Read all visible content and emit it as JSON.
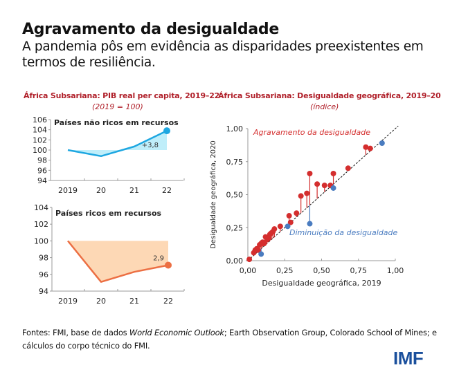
{
  "header": {
    "title": "Agravamento da desigualdade",
    "subtitle": "A pandemia pôs em evidência as disparidades preexistentes em termos de resiliência."
  },
  "left_panel": {
    "title": "África Subsariana: PIB real per capita, 2019–22",
    "subtitle": "(2019 = 100)"
  },
  "right_panel": {
    "title": "África Subsariana: Desigualdade geográfica, 2019–20",
    "subtitle": "(índice)"
  },
  "footer": {
    "sources_prefix": "Fontes: FMI, base de dados ",
    "sources_italic": "World Economic Outlook",
    "sources_suffix": "; Earth Observation Group, Colorado School of Mines; e cálculos do corpo técnico do FMI.",
    "logo": "IMF"
  },
  "colors": {
    "title_red": "#b0202a",
    "blue_line": "#1ea7e1",
    "blue_fill": "#bfeefa",
    "orange_line": "#ec6f43",
    "orange_fill": "#fdd8b5",
    "scatter_red": "#d42e2e",
    "scatter_blue": "#4a7cc0",
    "logo_blue": "#1a4f9c"
  },
  "chart_data": [
    {
      "type": "line",
      "title": "Países não ricos em recursos",
      "categories": [
        "2019",
        "20",
        "21",
        "22"
      ],
      "series": [
        {
          "name": "Países não ricos em recursos",
          "values": [
            100,
            98.8,
            100.7,
            103.8
          ]
        }
      ],
      "ylim": [
        94,
        106
      ],
      "yticks": [
        94,
        96,
        98,
        100,
        102,
        104,
        106
      ],
      "annotation": "+3,8",
      "baseline": 100,
      "grid": false
    },
    {
      "type": "line",
      "title": "Países ricos em recursos",
      "categories": [
        "2019",
        "20",
        "21",
        "22"
      ],
      "series": [
        {
          "name": "Países ricos em recursos",
          "values": [
            100,
            95.1,
            96.3,
            97.1
          ]
        }
      ],
      "ylim": [
        94,
        104
      ],
      "yticks": [
        94,
        96,
        98,
        100,
        102,
        104
      ],
      "annotation": "2,9",
      "baseline": 100,
      "grid": false
    },
    {
      "type": "scatter",
      "title": "África Subsariana: Desigualdade geográfica, 2019–20",
      "xlabel": "Desigualdade geográfica, 2019",
      "ylabel": "Desigualdade geográfica, 2020",
      "xlim": [
        0,
        1
      ],
      "ylim": [
        0,
        1
      ],
      "xticks": [
        "0,00",
        "0,25",
        "0,50",
        "0,75",
        "1,00"
      ],
      "yticks": [
        "0,00",
        "0,25",
        "0,50",
        "0,75",
        "1,00"
      ],
      "xtick_values": [
        0,
        0.25,
        0.5,
        0.75,
        1
      ],
      "ytick_values": [
        0,
        0.25,
        0.5,
        0.75,
        1
      ],
      "annotations": [
        "Agravamento da desigualdade",
        "Diminuição da desigualdade"
      ],
      "diagonal": "y = x",
      "series": [
        {
          "name": "Agravamento da desigualdade",
          "points": [
            [
              0.01,
              0.01
            ],
            [
              0.04,
              0.06
            ],
            [
              0.05,
              0.08
            ],
            [
              0.06,
              0.09
            ],
            [
              0.07,
              0.08
            ],
            [
              0.08,
              0.12
            ],
            [
              0.09,
              0.13
            ],
            [
              0.1,
              0.14
            ],
            [
              0.11,
              0.13
            ],
            [
              0.12,
              0.18
            ],
            [
              0.13,
              0.16
            ],
            [
              0.14,
              0.17
            ],
            [
              0.15,
              0.2
            ],
            [
              0.16,
              0.21
            ],
            [
              0.17,
              0.22
            ],
            [
              0.18,
              0.24
            ],
            [
              0.22,
              0.26
            ],
            [
              0.28,
              0.34
            ],
            [
              0.29,
              0.29
            ],
            [
              0.33,
              0.36
            ],
            [
              0.36,
              0.49
            ],
            [
              0.4,
              0.51
            ],
            [
              0.42,
              0.66
            ],
            [
              0.47,
              0.58
            ],
            [
              0.52,
              0.57
            ],
            [
              0.56,
              0.57
            ],
            [
              0.58,
              0.66
            ],
            [
              0.68,
              0.7
            ],
            [
              0.8,
              0.86
            ],
            [
              0.83,
              0.85
            ]
          ]
        },
        {
          "name": "Diminuição da desigualdade",
          "points": [
            [
              0.09,
              0.05
            ],
            [
              0.27,
              0.26
            ],
            [
              0.42,
              0.28
            ],
            [
              0.58,
              0.55
            ],
            [
              0.91,
              0.89
            ]
          ]
        }
      ]
    }
  ]
}
